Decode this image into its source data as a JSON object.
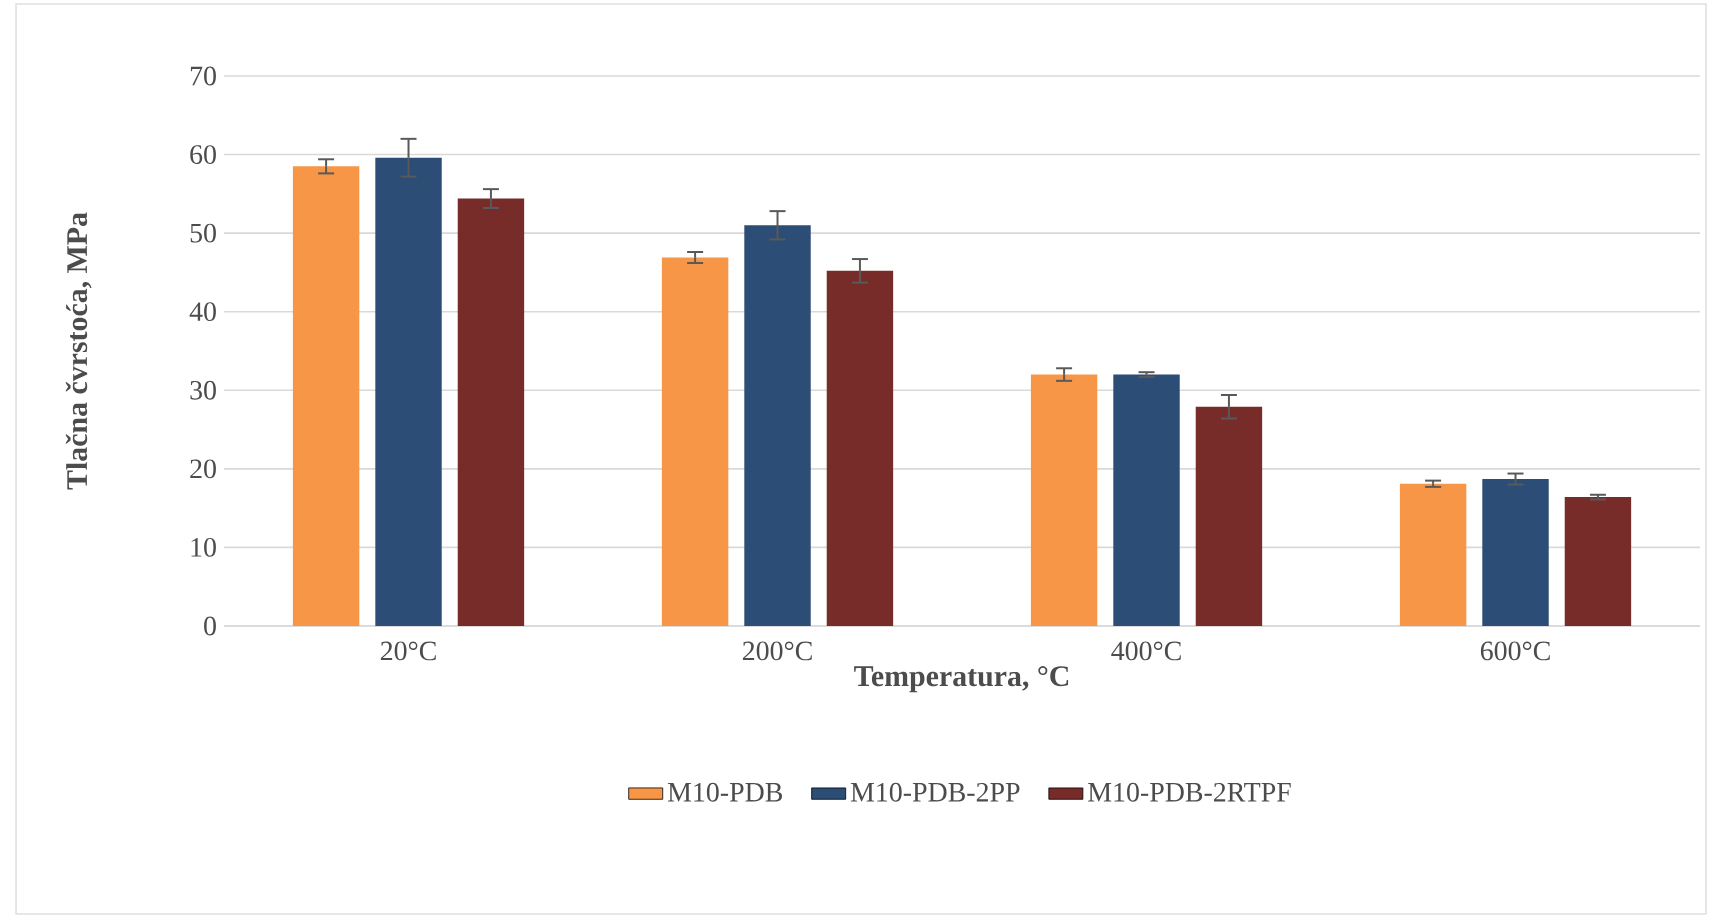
{
  "chart_data": {
    "type": "bar",
    "xlabel": "Temperatura, °C",
    "ylabel": "Tlačna čvrstoća, MPa",
    "categories": [
      "20°C",
      "200°C",
      "400°C",
      "600°C"
    ],
    "series": [
      {
        "name": "M10-PDB",
        "color": "#f79646",
        "values": [
          58.5,
          46.9,
          32.0,
          18.1
        ],
        "errors": [
          0.9,
          0.7,
          0.8,
          0.4
        ]
      },
      {
        "name": "M10-PDB-2PP",
        "color": "#2c4d75",
        "values": [
          59.6,
          51.0,
          32.0,
          18.7
        ],
        "errors": [
          2.4,
          1.8,
          0.3,
          0.7
        ]
      },
      {
        "name": "M10-PDB-2RTPF",
        "color": "#772c2a",
        "values": [
          54.4,
          45.2,
          27.9,
          16.4
        ],
        "errors": [
          1.2,
          1.5,
          1.5,
          0.3
        ]
      }
    ],
    "ylim": [
      0,
      70
    ],
    "yticks": [
      0,
      10,
      20,
      30,
      40,
      50,
      60,
      70
    ],
    "grid": "y",
    "legend": "bottom"
  }
}
